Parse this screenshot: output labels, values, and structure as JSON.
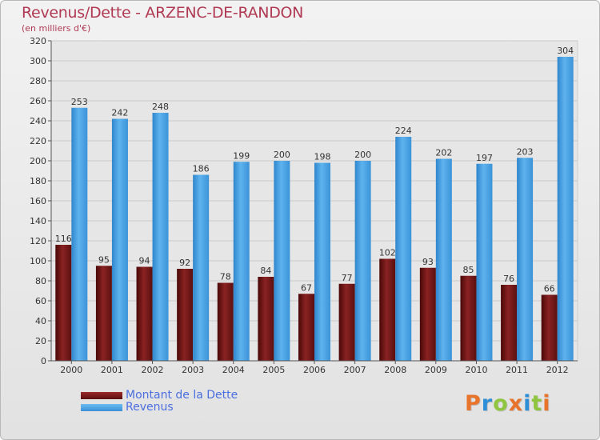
{
  "title": "Revenus/Dette - ARZENC-DE-RANDON",
  "subtitle": "(en milliers d'€)",
  "logo": {
    "text": "Proxiti",
    "letters": [
      "P",
      "r",
      "o",
      "x",
      "i",
      "t",
      "i"
    ],
    "colors": [
      "#e8732a",
      "#2f8fd6",
      "#8fc53f",
      "#e8732a",
      "#2f8fd6",
      "#8fc53f",
      "#e8732a"
    ]
  },
  "colors": {
    "dette": "#7a1a1a",
    "revenus": "#4aa5e8",
    "title": "#b03a54",
    "legend_text": "#4a6fe0"
  },
  "chart_data": {
    "type": "bar",
    "title": "Revenus/Dette - ARZENC-DE-RANDON",
    "subtitle": "(en milliers d'€)",
    "categories": [
      "2000",
      "2001",
      "2002",
      "2003",
      "2004",
      "2005",
      "2006",
      "2007",
      "2008",
      "2009",
      "2010",
      "2011",
      "2012"
    ],
    "series": [
      {
        "name": "Montant de la Dette",
        "color": "#7a1a1a",
        "values": [
          116,
          95,
          94,
          92,
          78,
          84,
          67,
          77,
          102,
          93,
          85,
          76,
          66
        ]
      },
      {
        "name": "Revenus",
        "color": "#4aa5e8",
        "values": [
          253,
          242,
          248,
          186,
          199,
          200,
          198,
          200,
          224,
          202,
          197,
          203,
          304
        ]
      }
    ],
    "yticks": [
      0,
      20,
      40,
      60,
      80,
      100,
      120,
      140,
      160,
      180,
      200,
      220,
      240,
      260,
      280,
      300,
      320
    ],
    "ylim": [
      0,
      320
    ],
    "grid": true,
    "legend": "bottom-left"
  }
}
